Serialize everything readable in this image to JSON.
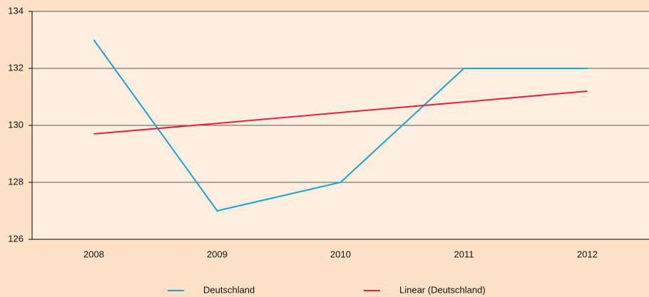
{
  "chart_data": {
    "type": "line",
    "categories": [
      "2008",
      "2009",
      "2010",
      "2011",
      "2012"
    ],
    "series": [
      {
        "name": "Deutschland",
        "color": "#1aa3d8",
        "values": [
          133,
          127,
          128,
          132,
          132
        ]
      },
      {
        "name": "Linear (Deutschland)",
        "color": "#e8213f",
        "values": [
          129.7,
          130.07,
          130.45,
          130.82,
          131.2
        ]
      }
    ],
    "ylim": [
      126,
      134
    ],
    "yticks": [
      126,
      128,
      130,
      132,
      134
    ],
    "grid": true,
    "legend": "bottom"
  }
}
